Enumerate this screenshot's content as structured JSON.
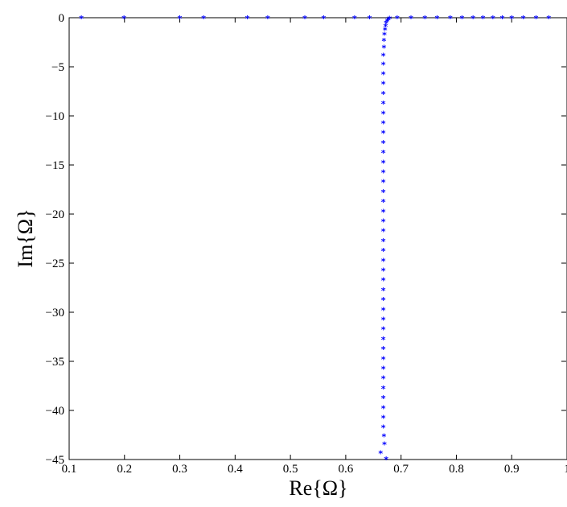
{
  "chart_data": {
    "type": "scatter",
    "title": "",
    "xlabel": "Re{Ω}",
    "ylabel": "Im{Ω}",
    "xlim": [
      0.1,
      1.0
    ],
    "ylim": [
      -45,
      0
    ],
    "xticks": [
      0.1,
      0.2,
      0.3,
      0.4,
      0.5,
      0.6,
      0.7,
      0.8,
      0.9,
      1.0
    ],
    "xtick_labels": [
      "0.1",
      "0.2",
      "0.3",
      "0.4",
      "0.5",
      "0.6",
      "0.7",
      "0.8",
      "0.9",
      "1"
    ],
    "yticks": [
      0,
      -5,
      -10,
      -15,
      -20,
      -25,
      -30,
      -35,
      -40,
      -45
    ],
    "ytick_labels": [
      "0",
      "−5",
      "−10",
      "−15",
      "−20",
      "−25",
      "−30",
      "−35",
      "−40",
      "−45"
    ],
    "grid": false,
    "legend": false,
    "marker": "*",
    "color": "#0000ff",
    "series": [
      {
        "points_horizontal": [
          [
            0.122,
            0
          ],
          [
            0.199,
            0
          ],
          [
            0.3,
            0
          ],
          [
            0.343,
            0
          ],
          [
            0.422,
            0
          ],
          [
            0.459,
            0
          ],
          [
            0.526,
            0
          ],
          [
            0.56,
            0
          ],
          [
            0.616,
            0
          ],
          [
            0.643,
            0
          ],
          [
            0.693,
            0
          ],
          [
            0.718,
            0
          ],
          [
            0.743,
            0
          ],
          [
            0.765,
            0
          ],
          [
            0.789,
            0
          ],
          [
            0.81,
            0
          ],
          [
            0.83,
            0
          ],
          [
            0.848,
            0
          ],
          [
            0.866,
            0
          ],
          [
            0.883,
            0
          ],
          [
            0.9,
            0
          ],
          [
            0.921,
            0
          ],
          [
            0.944,
            0
          ],
          [
            0.967,
            0
          ]
        ],
        "points_branch": [
          [
            0.679,
            -0.05
          ],
          [
            0.677,
            -0.15
          ],
          [
            0.675,
            -0.3
          ],
          [
            0.673,
            -0.5
          ],
          [
            0.672,
            -0.8
          ],
          [
            0.671,
            -1.2
          ],
          [
            0.67,
            -1.7
          ],
          [
            0.669,
            -2.3
          ],
          [
            0.669,
            -3.0
          ],
          [
            0.668,
            -3.8
          ],
          [
            0.668,
            -4.7
          ],
          [
            0.668,
            -5.7
          ],
          [
            0.668,
            -6.7
          ],
          [
            0.668,
            -7.7
          ],
          [
            0.668,
            -8.7
          ],
          [
            0.668,
            -9.7
          ],
          [
            0.668,
            -10.7
          ],
          [
            0.668,
            -11.7
          ],
          [
            0.668,
            -12.7
          ],
          [
            0.668,
            -13.7
          ],
          [
            0.668,
            -14.7
          ],
          [
            0.668,
            -15.7
          ],
          [
            0.668,
            -16.7
          ],
          [
            0.668,
            -17.7
          ],
          [
            0.668,
            -18.7
          ],
          [
            0.668,
            -19.7
          ],
          [
            0.668,
            -20.7
          ],
          [
            0.668,
            -21.7
          ],
          [
            0.668,
            -22.7
          ],
          [
            0.668,
            -23.7
          ],
          [
            0.668,
            -24.7
          ],
          [
            0.668,
            -25.7
          ],
          [
            0.668,
            -26.7
          ],
          [
            0.668,
            -27.7
          ],
          [
            0.668,
            -28.7
          ],
          [
            0.668,
            -29.7
          ],
          [
            0.668,
            -30.7
          ],
          [
            0.668,
            -31.7
          ],
          [
            0.668,
            -32.7
          ],
          [
            0.668,
            -33.7
          ],
          [
            0.668,
            -34.7
          ],
          [
            0.668,
            -35.7
          ],
          [
            0.668,
            -36.7
          ],
          [
            0.668,
            -37.7
          ],
          [
            0.668,
            -38.7
          ],
          [
            0.668,
            -39.7
          ],
          [
            0.668,
            -40.7
          ],
          [
            0.668,
            -41.7
          ],
          [
            0.669,
            -42.6
          ],
          [
            0.67,
            -43.4
          ],
          [
            0.663,
            -44.3
          ],
          [
            0.673,
            -44.9
          ]
        ]
      }
    ]
  }
}
